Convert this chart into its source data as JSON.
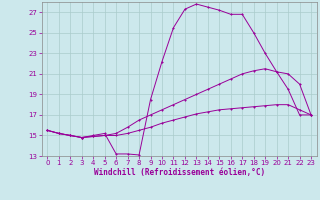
{
  "xlabel": "Windchill (Refroidissement éolien,°C)",
  "bg_color": "#cce8ec",
  "grid_color": "#aacccc",
  "line_color": "#990099",
  "xlim": [
    -0.5,
    23.5
  ],
  "ylim": [
    13,
    28
  ],
  "yticks": [
    13,
    15,
    17,
    19,
    21,
    23,
    25,
    27
  ],
  "xticks": [
    0,
    1,
    2,
    3,
    4,
    5,
    6,
    7,
    8,
    9,
    10,
    11,
    12,
    13,
    14,
    15,
    16,
    17,
    18,
    19,
    20,
    21,
    22,
    23
  ],
  "line1_x": [
    0,
    1,
    2,
    3,
    4,
    5,
    6,
    7,
    8,
    9,
    10,
    11,
    12,
    13,
    14,
    15,
    16,
    17,
    18,
    19,
    20,
    21,
    22,
    23
  ],
  "line1_y": [
    15.5,
    15.2,
    15.0,
    14.8,
    15.0,
    15.2,
    13.2,
    13.2,
    13.1,
    18.5,
    22.2,
    25.5,
    27.3,
    27.8,
    27.5,
    27.2,
    26.8,
    26.8,
    25.0,
    23.0,
    21.2,
    19.5,
    17.0,
    17.0
  ],
  "line2_x": [
    0,
    1,
    2,
    3,
    4,
    5,
    6,
    7,
    8,
    9,
    10,
    11,
    12,
    13,
    14,
    15,
    16,
    17,
    18,
    19,
    20,
    21,
    22,
    23
  ],
  "line2_y": [
    15.5,
    15.2,
    15.0,
    14.8,
    14.9,
    15.0,
    15.2,
    15.8,
    16.5,
    17.0,
    17.5,
    18.0,
    18.5,
    19.0,
    19.5,
    20.0,
    20.5,
    21.0,
    21.3,
    21.5,
    21.2,
    21.0,
    20.0,
    17.0
  ],
  "line3_x": [
    0,
    1,
    2,
    3,
    4,
    5,
    6,
    7,
    8,
    9,
    10,
    11,
    12,
    13,
    14,
    15,
    16,
    17,
    18,
    19,
    20,
    21,
    22,
    23
  ],
  "line3_y": [
    15.5,
    15.2,
    15.0,
    14.8,
    14.9,
    15.0,
    15.0,
    15.2,
    15.5,
    15.8,
    16.2,
    16.5,
    16.8,
    17.1,
    17.3,
    17.5,
    17.6,
    17.7,
    17.8,
    17.9,
    18.0,
    18.0,
    17.5,
    17.0
  ],
  "xlabel_fontsize": 5.5,
  "tick_fontsize": 5,
  "lw": 0.7,
  "ms": 2.0
}
